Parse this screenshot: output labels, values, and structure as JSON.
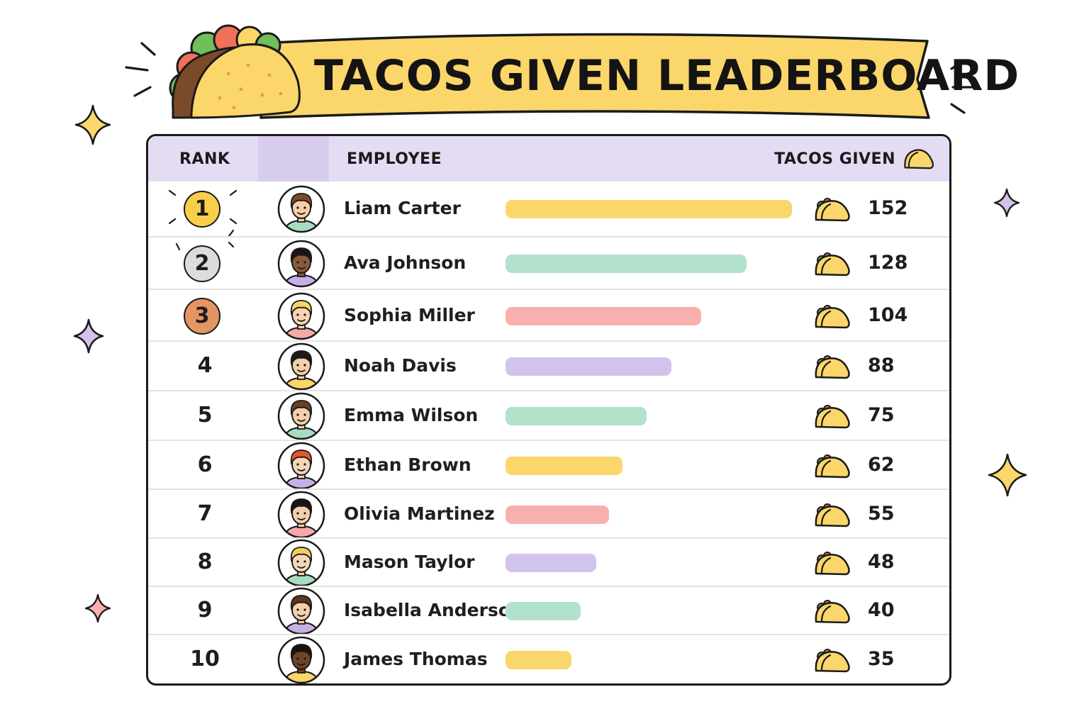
{
  "title": "TACOS GIVEN LEADERBOARD",
  "header": {
    "rank_label": "RANK",
    "employee_label": "EMPLOYEE",
    "tacos_label": "TACOS GIVEN"
  },
  "max_tacos": 152,
  "colors": {
    "yellow": "#fbd66a",
    "green": "#b3e2cc",
    "pink": "#f8b0ae",
    "lavender": "#d2c3ec",
    "gold_medal": "#f9cf49",
    "silver_medal": "#dcdcdc",
    "bronze_medal": "#e49561",
    "header_bg": "#e4dcf2"
  },
  "rows": [
    {
      "rank": "1",
      "name": "Liam Carter",
      "tacos": "152",
      "bar": "yellow",
      "medal": "gold",
      "skin": "#f5cfa8",
      "hair": "#7a4a2a",
      "shirt": "#a8dcc1"
    },
    {
      "rank": "2",
      "name": "Ava Johnson",
      "tacos": "128",
      "bar": "green",
      "medal": "silver",
      "skin": "#8a5a3b",
      "hair": "#1e1410",
      "shirt": "#c6b1e6"
    },
    {
      "rank": "3",
      "name": "Sophia Miller",
      "tacos": "104",
      "bar": "pink",
      "medal": "bronze",
      "skin": "#f7d3b2",
      "hair": "#f6d36b",
      "shirt": "#f6a9a8"
    },
    {
      "rank": "4",
      "name": "Noah Davis",
      "tacos": "88",
      "bar": "lavender",
      "medal": "",
      "skin": "#f3cfac",
      "hair": "#1e1a1a",
      "shirt": "#f9d56a"
    },
    {
      "rank": "5",
      "name": "Emma Wilson",
      "tacos": "75",
      "bar": "green",
      "medal": "",
      "skin": "#f3cfac",
      "hair": "#6b3f22",
      "shirt": "#a8dcc1"
    },
    {
      "rank": "6",
      "name": "Ethan Brown",
      "tacos": "62",
      "bar": "yellow",
      "medal": "",
      "skin": "#f7d6b8",
      "hair": "#e4572e",
      "shirt": "#c6b1e6"
    },
    {
      "rank": "7",
      "name": "Olivia Martinez",
      "tacos": "55",
      "bar": "pink",
      "medal": "",
      "skin": "#f3cfac",
      "hair": "#151515",
      "shirt": "#f6a9a8"
    },
    {
      "rank": "8",
      "name": "Mason Taylor",
      "tacos": "48",
      "bar": "lavender",
      "medal": "",
      "skin": "#f7d6b8",
      "hair": "#f3cf5a",
      "shirt": "#a8dcc1"
    },
    {
      "rank": "9",
      "name": "Isabella Anderson",
      "tacos": "40",
      "bar": "green",
      "medal": "",
      "skin": "#f3cfac",
      "hair": "#5a3520",
      "shirt": "#c6b1e6"
    },
    {
      "rank": "10",
      "name": "James Thomas",
      "tacos": "35",
      "bar": "yellow",
      "medal": "",
      "skin": "#6e4429",
      "hair": "#1a120d",
      "shirt": "#f9d56a"
    }
  ]
}
